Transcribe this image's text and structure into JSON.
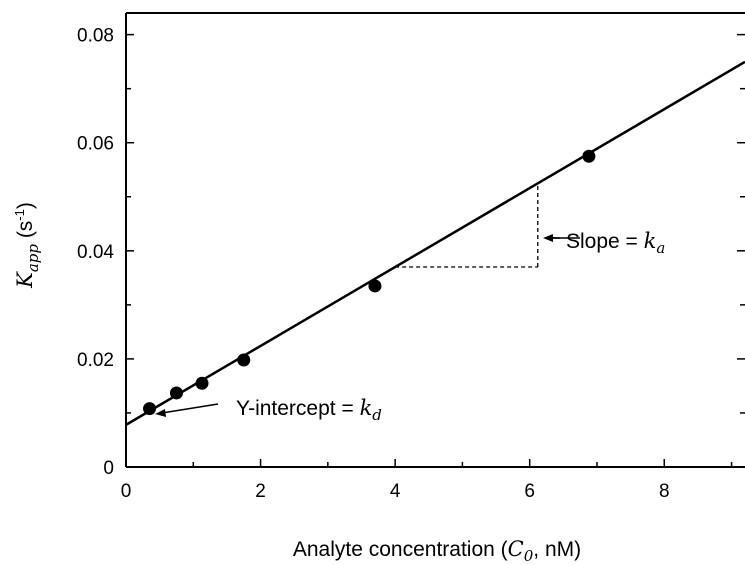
{
  "chart_data": {
    "type": "scatter",
    "title": "",
    "xlabel": {
      "prefix": "Analyte concentration (",
      "var": "C",
      "sub": "0",
      "suffix": ", nM)"
    },
    "ylabel": {
      "var": "K",
      "sub": "app",
      "unit_prefix": " (s",
      "unit_sup": "-1",
      "unit_suffix": ")"
    },
    "xlim": [
      0,
      9.2
    ],
    "ylim": [
      0,
      0.084
    ],
    "xticks": [
      0,
      2,
      4,
      6,
      8
    ],
    "xtick_labels": [
      "0",
      "2",
      "4",
      "6",
      "8"
    ],
    "yticks": [
      0,
      0.02,
      0.04,
      0.06,
      0.08
    ],
    "ytick_labels": [
      "0",
      "0.02",
      "0.04",
      "0.06",
      "0.08"
    ],
    "minor_yticks": [
      0.01,
      0.03,
      0.05,
      0.07
    ],
    "grid": false,
    "points": {
      "x": [
        0.35,
        0.75,
        1.13,
        1.75,
        3.7,
        6.88
      ],
      "y": [
        0.0108,
        0.0137,
        0.0155,
        0.0198,
        0.0335,
        0.0575
      ]
    },
    "fit_line": {
      "intercept": 0.0078,
      "slope": 0.0073
    },
    "annotations": {
      "slope": {
        "text": "Slope = ",
        "var": "k",
        "sub": "a"
      },
      "intercept": {
        "text": "Y-intercept = ",
        "var": "k",
        "sub": "d"
      }
    },
    "slope_triangle": {
      "x_start": 4.0,
      "x_end": 6.12
    }
  }
}
